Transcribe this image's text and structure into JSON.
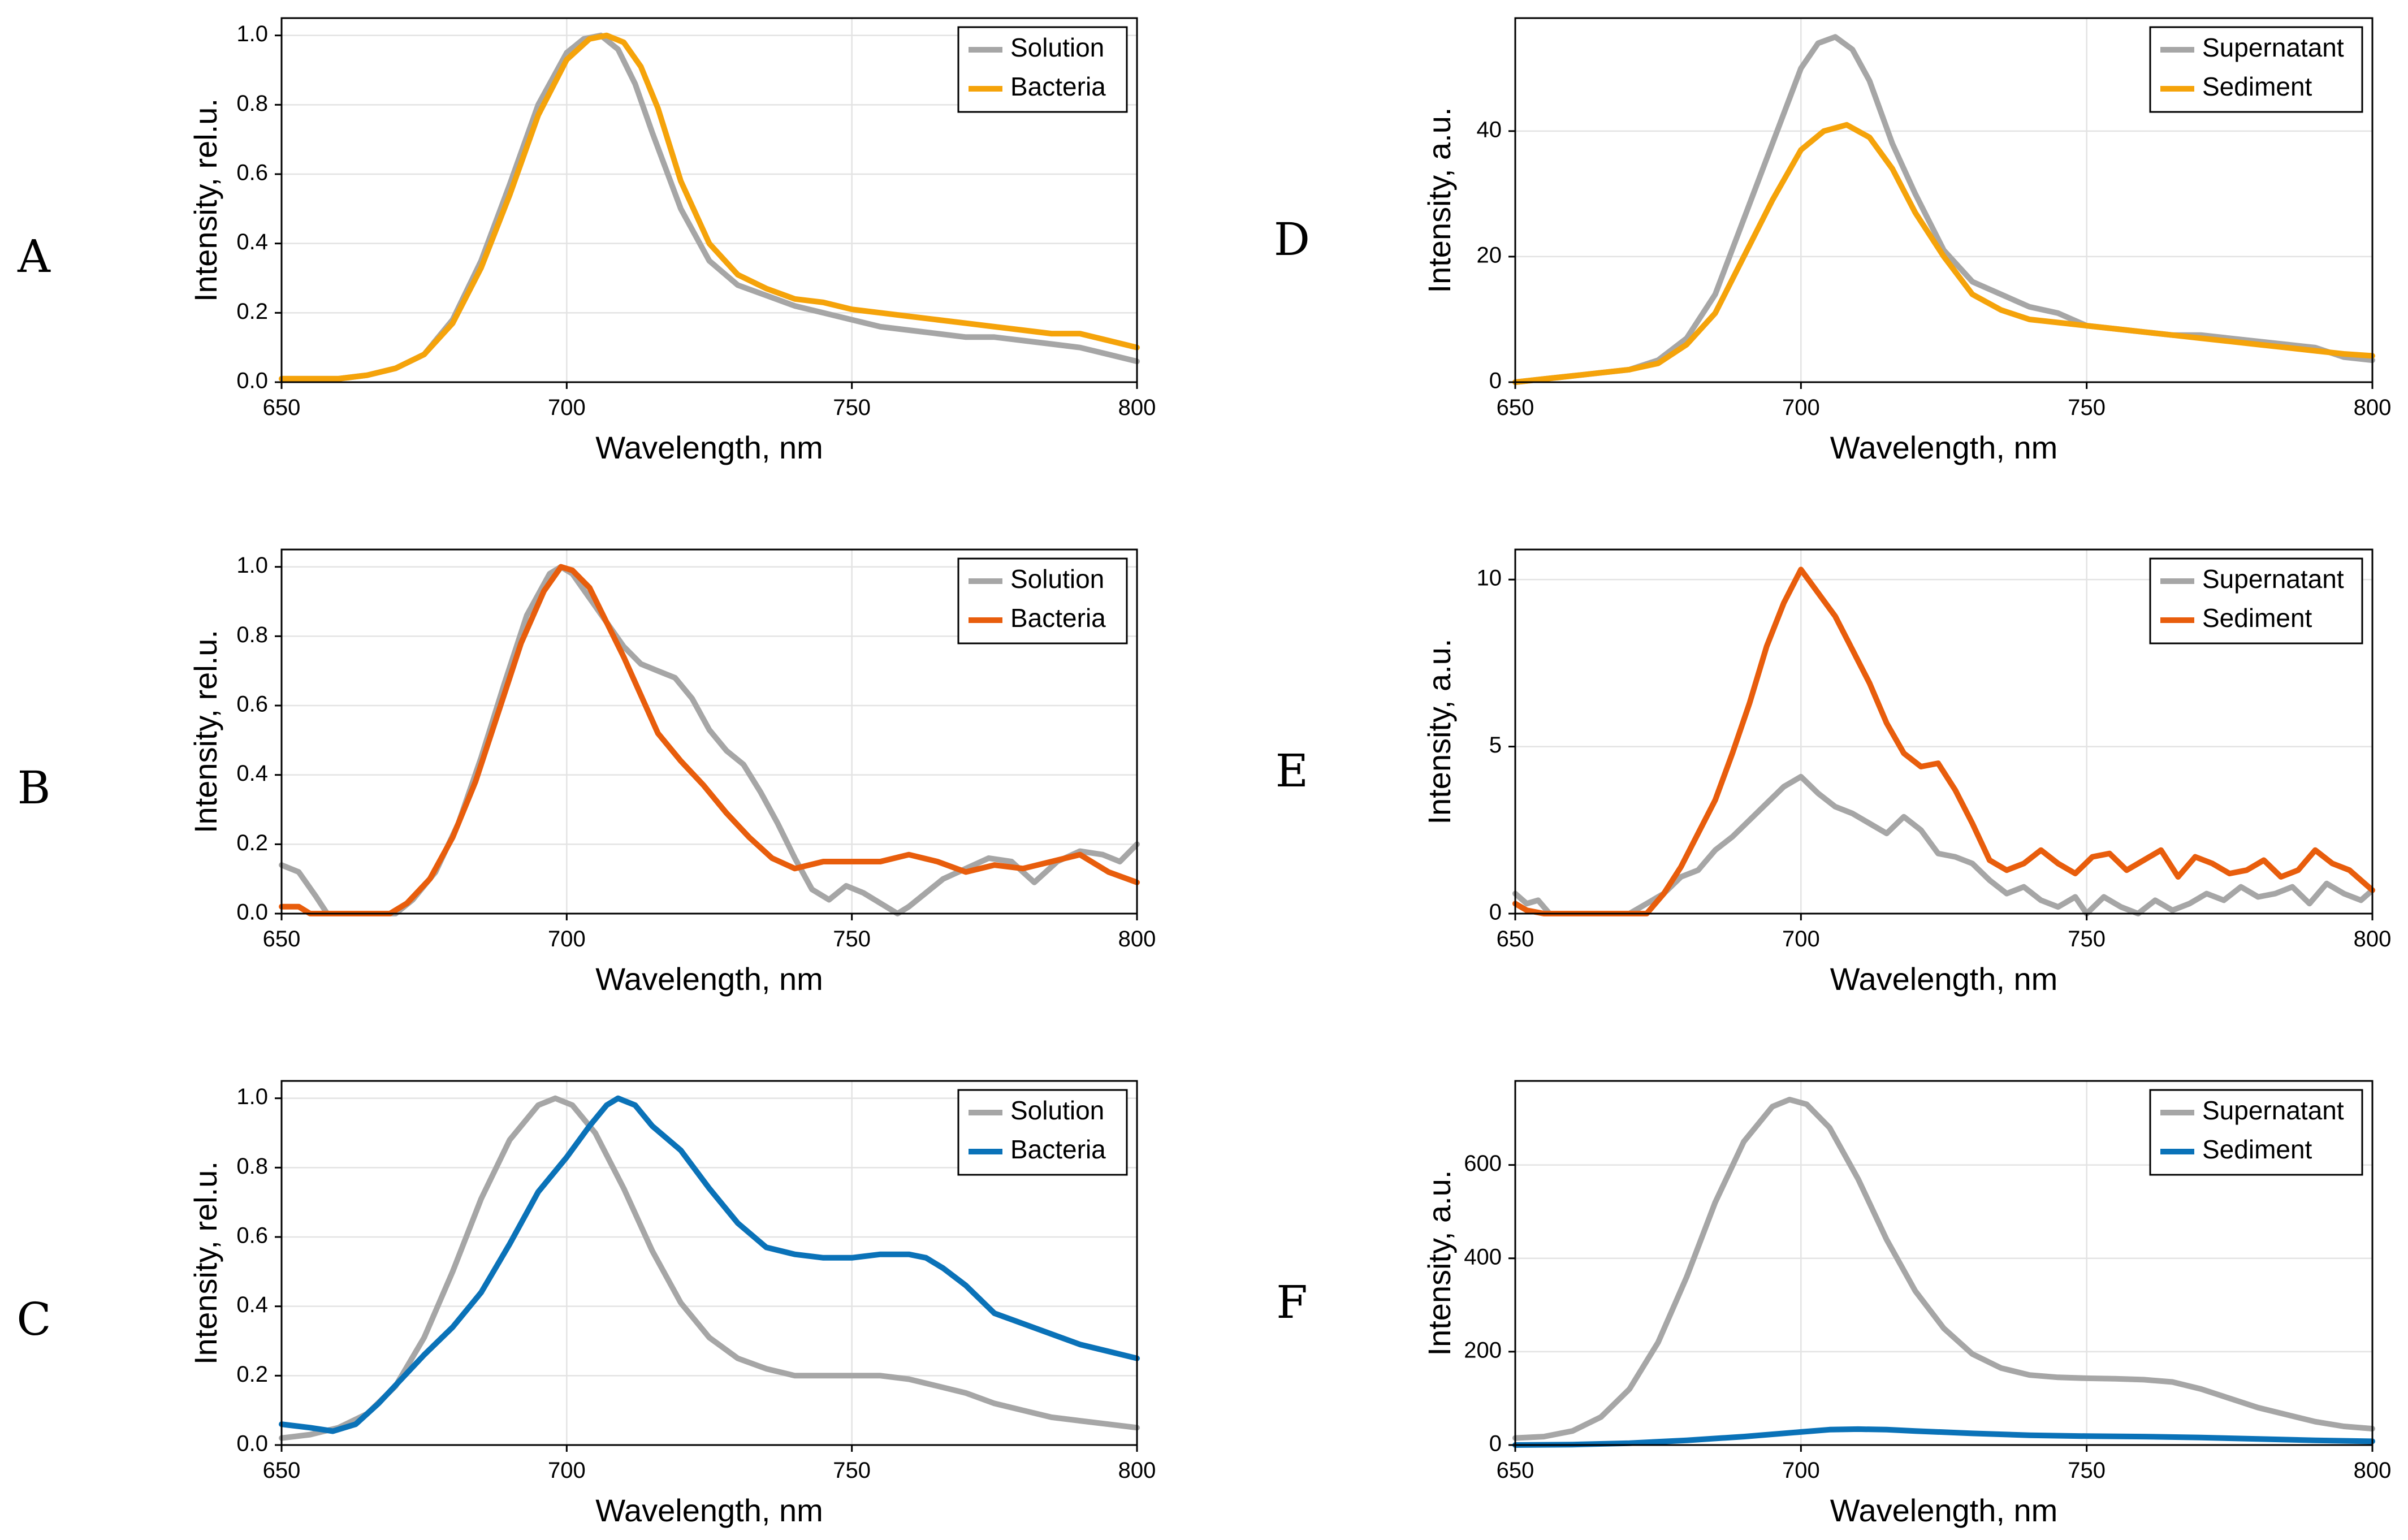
{
  "chart_data": [
    {
      "type": "line",
      "panel": "A",
      "xlabel": "Wavelength, nm",
      "ylabel": "Intensity, rel.u.",
      "xlim": [
        650,
        800
      ],
      "ylim": [
        0,
        1.05
      ],
      "xticks": [
        650,
        700,
        750,
        800
      ],
      "yticks": [
        0,
        0.2,
        0.4,
        0.6,
        0.8,
        1.0
      ],
      "ytick_labels": [
        "0.0",
        "0.2",
        "0.4",
        "0.6",
        "0.8",
        "1.0"
      ],
      "grid": true,
      "legend_position": "top-right",
      "series": [
        {
          "name": "Solution",
          "color": "#a6a6a6",
          "x": [
            650,
            660,
            665,
            670,
            675,
            680,
            685,
            690,
            695,
            700,
            703,
            706,
            709,
            712,
            715,
            720,
            725,
            730,
            735,
            740,
            745,
            750,
            755,
            760,
            765,
            770,
            775,
            780,
            785,
            790,
            795,
            800
          ],
          "y": [
            0.01,
            0.01,
            0.02,
            0.04,
            0.08,
            0.18,
            0.35,
            0.57,
            0.8,
            0.95,
            0.99,
            1.0,
            0.96,
            0.86,
            0.72,
            0.5,
            0.35,
            0.28,
            0.25,
            0.22,
            0.2,
            0.18,
            0.16,
            0.15,
            0.14,
            0.13,
            0.13,
            0.12,
            0.11,
            0.1,
            0.08,
            0.06
          ]
        },
        {
          "name": "Bacteria",
          "color": "#f5a30a",
          "x": [
            650,
            660,
            665,
            670,
            675,
            680,
            685,
            690,
            695,
            700,
            704,
            707,
            710,
            713,
            716,
            720,
            725,
            730,
            735,
            740,
            745,
            750,
            755,
            760,
            765,
            770,
            775,
            780,
            785,
            790,
            795,
            800
          ],
          "y": [
            0.01,
            0.01,
            0.02,
            0.04,
            0.08,
            0.17,
            0.33,
            0.54,
            0.77,
            0.93,
            0.99,
            1.0,
            0.98,
            0.91,
            0.79,
            0.58,
            0.4,
            0.31,
            0.27,
            0.24,
            0.23,
            0.21,
            0.2,
            0.19,
            0.18,
            0.17,
            0.16,
            0.15,
            0.14,
            0.14,
            0.12,
            0.1
          ]
        }
      ]
    },
    {
      "type": "line",
      "panel": "B",
      "xlabel": "Wavelength, nm",
      "ylabel": "Intensity, rel.u.",
      "xlim": [
        650,
        800
      ],
      "ylim": [
        0,
        1.05
      ],
      "xticks": [
        650,
        700,
        750,
        800
      ],
      "yticks": [
        0,
        0.2,
        0.4,
        0.6,
        0.8,
        1.0
      ],
      "ytick_labels": [
        "0.0",
        "0.2",
        "0.4",
        "0.6",
        "0.8",
        "1.0"
      ],
      "grid": true,
      "legend_position": "top-right",
      "series": [
        {
          "name": "Solution",
          "color": "#a6a6a6",
          "x": [
            650,
            653,
            656,
            658,
            670,
            673,
            677,
            681,
            685,
            689,
            693,
            697,
            699,
            701,
            704,
            707,
            710,
            713,
            716,
            719,
            722,
            725,
            728,
            731,
            734,
            737,
            740,
            743,
            746,
            749,
            752,
            755,
            758,
            760,
            763,
            766,
            770,
            774,
            778,
            782,
            786,
            790,
            794,
            797,
            800
          ],
          "y": [
            0.14,
            0.12,
            0.05,
            0.0,
            0.0,
            0.04,
            0.12,
            0.26,
            0.45,
            0.66,
            0.86,
            0.98,
            1.0,
            0.98,
            0.91,
            0.84,
            0.77,
            0.72,
            0.7,
            0.68,
            0.62,
            0.53,
            0.47,
            0.43,
            0.35,
            0.26,
            0.16,
            0.07,
            0.04,
            0.08,
            0.06,
            0.03,
            0.0,
            0.02,
            0.06,
            0.1,
            0.13,
            0.16,
            0.15,
            0.09,
            0.15,
            0.18,
            0.17,
            0.15,
            0.2
          ]
        },
        {
          "name": "Bacteria",
          "color": "#e85d0c",
          "x": [
            650,
            653,
            655,
            669,
            672,
            676,
            680,
            684,
            688,
            692,
            696,
            699,
            701,
            704,
            707,
            710,
            713,
            716,
            720,
            724,
            728,
            732,
            736,
            740,
            745,
            750,
            755,
            760,
            765,
            770,
            775,
            780,
            785,
            790,
            795,
            800
          ],
          "y": [
            0.02,
            0.02,
            0.0,
            0.0,
            0.03,
            0.1,
            0.22,
            0.38,
            0.58,
            0.78,
            0.93,
            1.0,
            0.99,
            0.94,
            0.84,
            0.74,
            0.63,
            0.52,
            0.44,
            0.37,
            0.29,
            0.22,
            0.16,
            0.13,
            0.15,
            0.15,
            0.15,
            0.17,
            0.15,
            0.12,
            0.14,
            0.13,
            0.15,
            0.17,
            0.12,
            0.09
          ]
        }
      ]
    },
    {
      "type": "line",
      "panel": "C",
      "xlabel": "Wavelength, nm",
      "ylabel": "Intensity, rel.u.",
      "xlim": [
        650,
        800
      ],
      "ylim": [
        0,
        1.05
      ],
      "xticks": [
        650,
        700,
        750,
        800
      ],
      "yticks": [
        0,
        0.2,
        0.4,
        0.6,
        0.8,
        1.0
      ],
      "ytick_labels": [
        "0.0",
        "0.2",
        "0.4",
        "0.6",
        "0.8",
        "1.0"
      ],
      "grid": true,
      "legend_position": "top-right",
      "series": [
        {
          "name": "Solution",
          "color": "#a6a6a6",
          "x": [
            650,
            655,
            660,
            665,
            670,
            675,
            680,
            685,
            690,
            695,
            698,
            701,
            705,
            710,
            715,
            720,
            725,
            730,
            735,
            740,
            745,
            750,
            755,
            760,
            765,
            770,
            775,
            780,
            785,
            790,
            795,
            800
          ],
          "y": [
            0.02,
            0.03,
            0.05,
            0.09,
            0.17,
            0.31,
            0.5,
            0.71,
            0.88,
            0.98,
            1.0,
            0.98,
            0.9,
            0.74,
            0.56,
            0.41,
            0.31,
            0.25,
            0.22,
            0.2,
            0.2,
            0.2,
            0.2,
            0.19,
            0.17,
            0.15,
            0.12,
            0.1,
            0.08,
            0.07,
            0.06,
            0.05
          ]
        },
        {
          "name": "Bacteria",
          "color": "#0a72b8",
          "x": [
            650,
            655,
            659,
            663,
            667,
            671,
            675,
            680,
            685,
            690,
            695,
            700,
            704,
            707,
            709,
            712,
            715,
            720,
            725,
            730,
            735,
            740,
            745,
            750,
            755,
            760,
            763,
            766,
            770,
            775,
            780,
            785,
            790,
            795,
            800
          ],
          "y": [
            0.06,
            0.05,
            0.04,
            0.06,
            0.12,
            0.19,
            0.26,
            0.34,
            0.44,
            0.58,
            0.73,
            0.83,
            0.92,
            0.98,
            1.0,
            0.98,
            0.92,
            0.85,
            0.74,
            0.64,
            0.57,
            0.55,
            0.54,
            0.54,
            0.55,
            0.55,
            0.54,
            0.51,
            0.46,
            0.38,
            0.35,
            0.32,
            0.29,
            0.27,
            0.25
          ]
        }
      ]
    },
    {
      "type": "line",
      "panel": "D",
      "xlabel": "Wavelength, nm",
      "ylabel": "Intensity, a.u.",
      "xlim": [
        650,
        800
      ],
      "ylim": [
        0,
        58
      ],
      "xticks": [
        650,
        700,
        750,
        800
      ],
      "yticks": [
        0,
        20,
        40
      ],
      "ytick_labels": [
        "0",
        "20",
        "40"
      ],
      "grid": true,
      "legend_position": "top-right",
      "series": [
        {
          "name": "Supernatant",
          "color": "#a6a6a6",
          "x": [
            650,
            655,
            660,
            665,
            670,
            675,
            680,
            685,
            690,
            695,
            700,
            703,
            706,
            709,
            712,
            716,
            720,
            725,
            730,
            735,
            740,
            745,
            750,
            755,
            760,
            765,
            770,
            775,
            780,
            785,
            790,
            795,
            800
          ],
          "y": [
            0,
            0.5,
            1,
            1.5,
            2,
            3.5,
            7,
            14,
            26,
            38,
            50,
            54,
            55,
            53,
            48,
            38,
            30,
            21,
            16,
            14,
            12,
            11,
            9,
            8.5,
            8,
            7.5,
            7.5,
            7,
            6.5,
            6,
            5.5,
            4,
            3.5
          ]
        },
        {
          "name": "Sediment",
          "color": "#f5a30a",
          "x": [
            650,
            655,
            660,
            665,
            670,
            675,
            680,
            685,
            690,
            695,
            700,
            704,
            708,
            712,
            716,
            720,
            725,
            730,
            735,
            740,
            745,
            750,
            755,
            760,
            765,
            770,
            775,
            780,
            785,
            790,
            795,
            800
          ],
          "y": [
            0,
            0.5,
            1,
            1.5,
            2,
            3,
            6,
            11,
            20,
            29,
            37,
            40,
            41,
            39,
            34,
            27,
            20,
            14,
            11.5,
            10,
            9.5,
            9,
            8.5,
            8,
            7.5,
            7,
            6.5,
            6,
            5.5,
            5,
            4.5,
            4.2
          ]
        }
      ]
    },
    {
      "type": "line",
      "panel": "E",
      "xlabel": "Wavelength, nm",
      "ylabel": "Intensity, a.u.",
      "xlim": [
        650,
        800
      ],
      "ylim": [
        0,
        10.9
      ],
      "xticks": [
        650,
        700,
        750,
        800
      ],
      "yticks": [
        0,
        5,
        10
      ],
      "ytick_labels": [
        "0",
        "5",
        "10"
      ],
      "grid": true,
      "legend_position": "top-right",
      "series": [
        {
          "name": "Supernatant",
          "color": "#a6a6a6",
          "x": [
            650,
            652,
            654,
            656,
            670,
            673,
            676,
            679,
            682,
            685,
            688,
            691,
            694,
            697,
            700,
            703,
            706,
            709,
            712,
            715,
            718,
            721,
            724,
            727,
            730,
            733,
            736,
            739,
            742,
            745,
            748,
            750,
            753,
            756,
            759,
            762,
            765,
            768,
            771,
            774,
            777,
            780,
            783,
            786,
            789,
            792,
            795,
            798,
            800
          ],
          "y": [
            0.6,
            0.3,
            0.4,
            0.0,
            0.0,
            0.3,
            0.6,
            1.1,
            1.3,
            1.9,
            2.3,
            2.8,
            3.3,
            3.8,
            4.1,
            3.6,
            3.2,
            3.0,
            2.7,
            2.4,
            2.9,
            2.5,
            1.8,
            1.7,
            1.5,
            1.0,
            0.6,
            0.8,
            0.4,
            0.2,
            0.5,
            0.0,
            0.5,
            0.2,
            0.0,
            0.4,
            0.1,
            0.3,
            0.6,
            0.4,
            0.8,
            0.5,
            0.6,
            0.8,
            0.3,
            0.9,
            0.6,
            0.4,
            0.7
          ]
        },
        {
          "name": "Sediment",
          "color": "#e85d0c",
          "x": [
            650,
            652,
            655,
            673,
            676,
            679,
            682,
            685,
            688,
            691,
            694,
            697,
            700,
            703,
            706,
            709,
            712,
            715,
            718,
            721,
            724,
            727,
            730,
            733,
            736,
            739,
            742,
            745,
            748,
            751,
            754,
            757,
            760,
            763,
            766,
            769,
            772,
            775,
            778,
            781,
            784,
            787,
            790,
            793,
            796,
            800
          ],
          "y": [
            0.3,
            0.1,
            0.0,
            0.0,
            0.6,
            1.4,
            2.4,
            3.4,
            4.8,
            6.3,
            8.0,
            9.3,
            10.3,
            9.6,
            8.9,
            7.9,
            6.9,
            5.7,
            4.8,
            4.4,
            4.5,
            3.7,
            2.7,
            1.6,
            1.3,
            1.5,
            1.9,
            1.5,
            1.2,
            1.7,
            1.8,
            1.3,
            1.6,
            1.9,
            1.1,
            1.7,
            1.5,
            1.2,
            1.3,
            1.6,
            1.1,
            1.3,
            1.9,
            1.5,
            1.3,
            0.7
          ]
        }
      ]
    },
    {
      "type": "line",
      "panel": "F",
      "xlabel": "Wavelength, nm",
      "ylabel": "Intensity, a.u.",
      "xlim": [
        650,
        800
      ],
      "ylim": [
        0,
        780
      ],
      "xticks": [
        650,
        700,
        750,
        800
      ],
      "yticks": [
        0,
        200,
        400,
        600
      ],
      "ytick_labels": [
        "0",
        "200",
        "400",
        "600"
      ],
      "grid": true,
      "legend_position": "top-right",
      "series": [
        {
          "name": "Supernatant",
          "color": "#a6a6a6",
          "x": [
            650,
            655,
            660,
            665,
            670,
            675,
            680,
            685,
            690,
            695,
            698,
            701,
            705,
            710,
            715,
            720,
            725,
            730,
            735,
            740,
            745,
            750,
            755,
            760,
            765,
            770,
            775,
            780,
            785,
            790,
            795,
            800
          ],
          "y": [
            15,
            18,
            30,
            60,
            120,
            220,
            360,
            520,
            650,
            725,
            740,
            730,
            680,
            570,
            440,
            330,
            250,
            195,
            165,
            150,
            145,
            143,
            142,
            140,
            135,
            120,
            100,
            80,
            65,
            50,
            40,
            35
          ]
        },
        {
          "name": "Sediment",
          "color": "#0a72b8",
          "x": [
            650,
            660,
            670,
            680,
            690,
            700,
            705,
            710,
            715,
            720,
            730,
            740,
            750,
            760,
            770,
            780,
            790,
            800
          ],
          "y": [
            0,
            1,
            4,
            10,
            18,
            28,
            33,
            34,
            33,
            30,
            25,
            21,
            19,
            18,
            16,
            13,
            10,
            8
          ]
        }
      ]
    }
  ]
}
